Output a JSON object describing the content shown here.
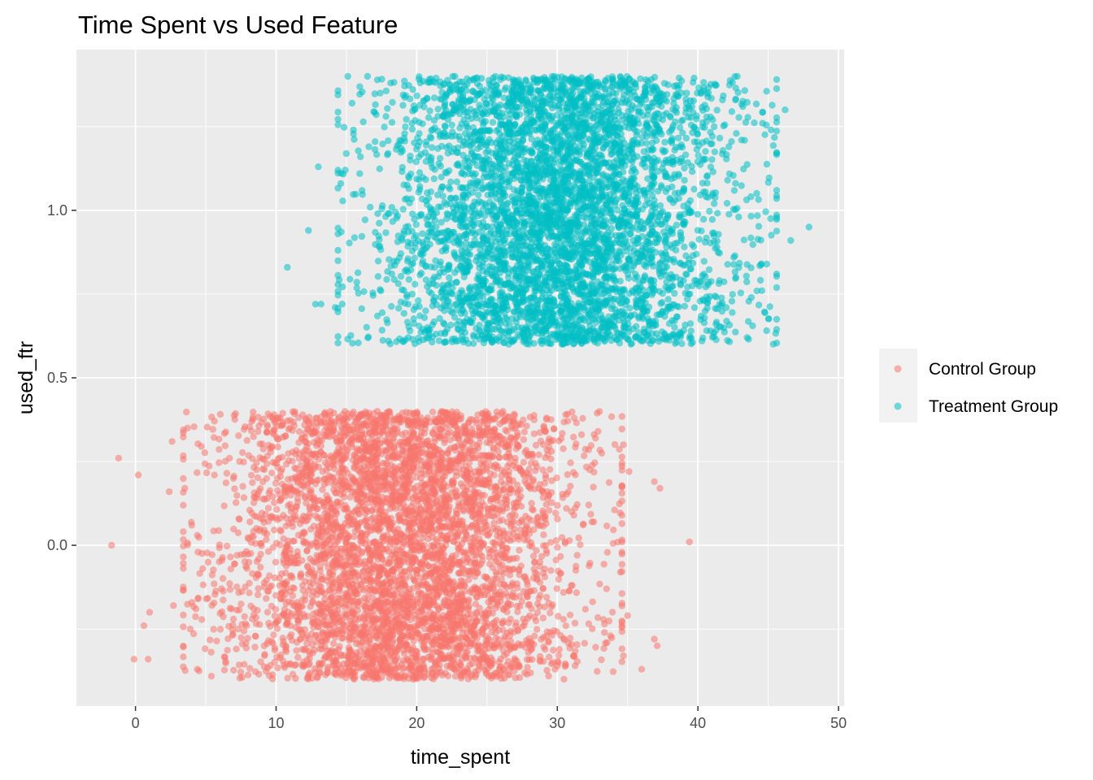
{
  "chart_data": {
    "type": "scatter",
    "title": "Time Spent vs Used Feature",
    "xlabel": "time_spent",
    "ylabel": "used_ftr",
    "xlim": [
      -4.2,
      50.4
    ],
    "ylim": [
      -0.48,
      1.48
    ],
    "x_ticks": [
      0,
      10,
      20,
      30,
      40,
      50
    ],
    "x_tick_labels": [
      "0",
      "10",
      "20",
      "30",
      "40",
      "50"
    ],
    "y_ticks": [
      0.0,
      0.5,
      1.0
    ],
    "y_tick_labels": [
      "0.0",
      "0.5",
      "1.0"
    ],
    "grid": true,
    "legend_position": "right",
    "point_alpha": 0.55,
    "series": [
      {
        "name": "Control Group",
        "color": "#F8766D",
        "base_y": 0,
        "y_jitter": 0.4,
        "n_points": 5000,
        "x_mean": 19,
        "x_sd": 6,
        "points": [
          [
            -1.7,
            0.0
          ],
          [
            -1.2,
            0.26
          ],
          [
            0.2,
            0.21
          ],
          [
            0.6,
            -0.24
          ],
          [
            1.0,
            -0.2
          ],
          [
            2.4,
            0.16
          ],
          [
            2.6,
            0.31
          ],
          [
            2.7,
            -0.18
          ],
          [
            3.7,
            0.35
          ],
          [
            4.0,
            0.06
          ],
          [
            4.3,
            -0.19
          ],
          [
            4.4,
            -0.37
          ],
          [
            3.9,
            -0.25
          ],
          [
            -0.1,
            -0.34
          ],
          [
            0.9,
            -0.34
          ],
          [
            39.4,
            0.01
          ],
          [
            37.3,
            0.17
          ],
          [
            36.9,
            0.19
          ],
          [
            35.1,
            0.22
          ],
          [
            34.7,
            0.3
          ],
          [
            36.9,
            -0.28
          ],
          [
            37.1,
            -0.3
          ],
          [
            36.0,
            -0.37
          ],
          [
            35.0,
            -0.21
          ],
          [
            34.7,
            -0.33
          ],
          [
            32.9,
            0.34
          ],
          [
            32.6,
            0.07
          ],
          [
            33.5,
            -0.13
          ],
          [
            30.0,
            -0.36
          ],
          [
            31.2,
            0.38
          ]
        ]
      },
      {
        "name": "Treatment Group",
        "color": "#00BFC4",
        "base_y": 1,
        "y_jitter": 0.4,
        "n_points": 5000,
        "x_mean": 30,
        "x_sd": 6,
        "points": [
          [
            10.8,
            0.83
          ],
          [
            12.3,
            0.94
          ],
          [
            13.0,
            1.13
          ],
          [
            13.2,
            0.72
          ],
          [
            14.2,
            0.71
          ],
          [
            14.7,
            0.72
          ],
          [
            15.1,
            1.4
          ],
          [
            15.4,
            1.32
          ],
          [
            15.5,
            1.24
          ],
          [
            14.6,
            1.08
          ],
          [
            16.5,
            1.4
          ],
          [
            16.0,
            1.16
          ],
          [
            46.2,
            1.3
          ],
          [
            46.6,
            0.91
          ],
          [
            47.9,
            0.95
          ],
          [
            44.5,
            0.84
          ],
          [
            44.6,
            1.26
          ],
          [
            43.5,
            0.62
          ],
          [
            43.1,
            1.21
          ],
          [
            42.8,
            1.4
          ],
          [
            43.8,
            0.74
          ],
          [
            43.2,
            1.31
          ],
          [
            42.9,
            0.98
          ],
          [
            42.2,
            1.19
          ],
          [
            18.0,
            0.61
          ],
          [
            19.4,
            0.62
          ],
          [
            17.4,
            1.35
          ],
          [
            16.6,
            1.19
          ],
          [
            12.8,
            0.72
          ],
          [
            45.2,
            1.24
          ]
        ]
      }
    ]
  },
  "colors": {
    "panel_background": "#EBEBEB",
    "grid_major": "#FFFFFF",
    "legend_key_background": "#F2F2F2",
    "tick_text": "#4D4D4D",
    "tick_mark": "#333333"
  }
}
